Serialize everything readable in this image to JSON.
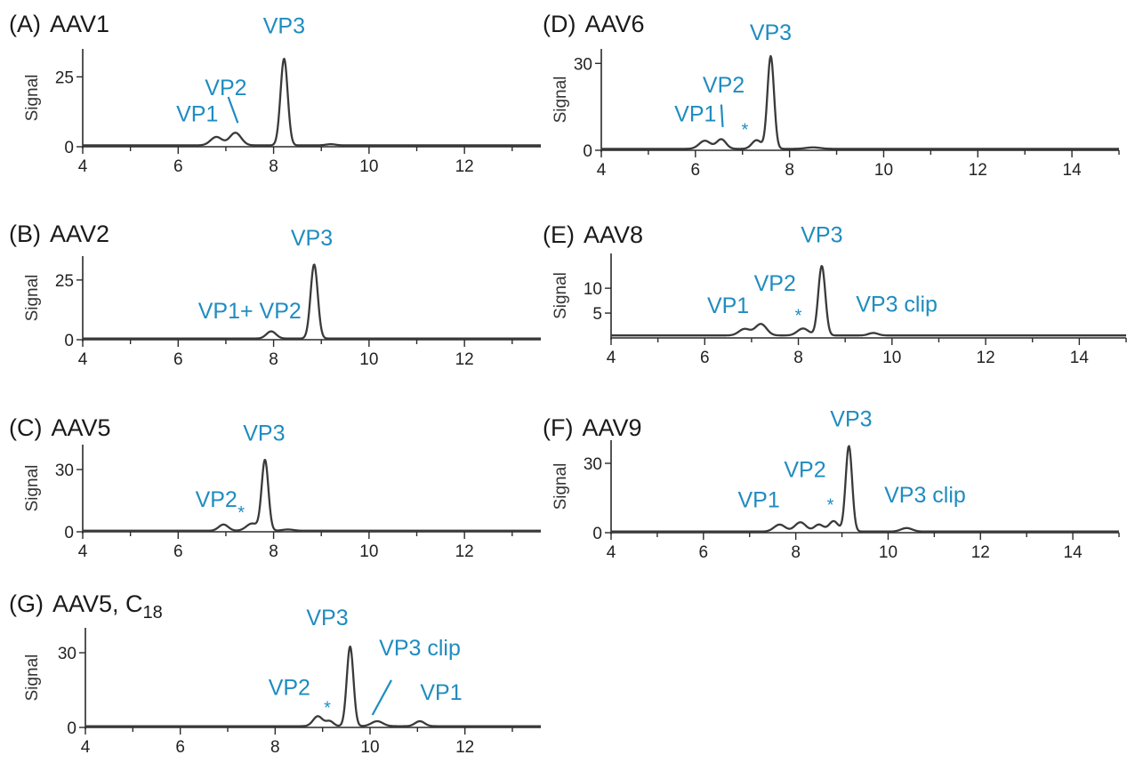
{
  "chart_data": [
    {
      "type": "line",
      "panel": "(A)",
      "title": "AAV1",
      "ylabel": "Signal",
      "xlim": [
        4,
        13.6
      ],
      "ylim": [
        0,
        35
      ],
      "xticks": [
        4,
        6,
        8,
        10,
        12
      ],
      "yticks": [
        0,
        25
      ],
      "baseline": 0.5,
      "peaks": [
        {
          "x": 6.8,
          "height": 3.0,
          "width": 0.12
        },
        {
          "x": 7.2,
          "height": 4.5,
          "width": 0.12
        },
        {
          "x": 8.22,
          "height": 31,
          "width": 0.075
        },
        {
          "x": 9.2,
          "height": 0.4,
          "width": 0.1
        }
      ],
      "annotations": [
        {
          "text": "VP1",
          "x": 6.4,
          "y": 9
        },
        {
          "text": "VP2",
          "x": 7.0,
          "y": 18.5
        },
        {
          "text": "VP3",
          "x": 8.22,
          "y": 40.5
        }
      ],
      "leaders": [
        [
          7.05,
          17.8,
          7.25,
          8.5
        ]
      ]
    },
    {
      "type": "line",
      "panel": "(B)",
      "title": "AAV2",
      "ylabel": "Signal",
      "xlim": [
        4,
        13.6
      ],
      "ylim": [
        0,
        35
      ],
      "xticks": [
        4,
        6,
        8,
        10,
        12
      ],
      "yticks": [
        0,
        25
      ],
      "baseline": 0.5,
      "peaks": [
        {
          "x": 7.95,
          "height": 3.0,
          "width": 0.1
        },
        {
          "x": 8.85,
          "height": 31,
          "width": 0.075
        }
      ],
      "annotations": [
        {
          "text": "VP1+ VP2",
          "x": 7.5,
          "y": 9
        },
        {
          "text": "VP3",
          "x": 8.8,
          "y": 39.5
        }
      ],
      "leaders": []
    },
    {
      "type": "line",
      "panel": "(C)",
      "title": "AAV5",
      "ylabel": "Signal",
      "xlim": [
        4,
        13.6
      ],
      "ylim": [
        0,
        42
      ],
      "xticks": [
        4,
        6,
        8,
        10,
        12
      ],
      "yticks": [
        0,
        30
      ],
      "baseline": 0.5,
      "peaks": [
        {
          "x": 6.95,
          "height": 3.0,
          "width": 0.1
        },
        {
          "x": 7.55,
          "height": 3.5,
          "width": 0.12
        },
        {
          "x": 7.82,
          "height": 34,
          "width": 0.07
        },
        {
          "x": 8.3,
          "height": 0.6,
          "width": 0.12
        }
      ],
      "annotations": [
        {
          "text": "VP2",
          "x": 6.8,
          "y": 12
        },
        {
          "text": "*",
          "x": 7.32,
          "y": 6.5
        },
        {
          "text": "VP3",
          "x": 7.8,
          "y": 44
        }
      ],
      "leaders": []
    },
    {
      "type": "line",
      "panel": "(D)",
      "title": "AAV6",
      "ylabel": "Signal",
      "xlim": [
        4,
        15
      ],
      "ylim": [
        0,
        35
      ],
      "xticks": [
        4,
        6,
        8,
        10,
        12,
        14
      ],
      "yticks": [
        0,
        30
      ],
      "baseline": 0.5,
      "peaks": [
        {
          "x": 6.2,
          "height": 2.8,
          "width": 0.12
        },
        {
          "x": 6.55,
          "height": 3.3,
          "width": 0.1
        },
        {
          "x": 7.3,
          "height": 3.0,
          "width": 0.1
        },
        {
          "x": 7.6,
          "height": 32,
          "width": 0.07
        },
        {
          "x": 8.5,
          "height": 0.5,
          "width": 0.15
        }
      ],
      "annotations": [
        {
          "text": "VP1",
          "x": 6.0,
          "y": 10
        },
        {
          "text": "VP2",
          "x": 6.6,
          "y": 20
        },
        {
          "text": "*",
          "x": 7.05,
          "y": 5
        },
        {
          "text": "VP3",
          "x": 7.6,
          "y": 38
        }
      ],
      "leaders": [
        [
          6.55,
          15.8,
          6.58,
          8.0
        ]
      ]
    },
    {
      "type": "line",
      "panel": "(E)",
      "title": "AAV8",
      "ylabel": "Signal",
      "xlim": [
        4,
        15
      ],
      "ylim": [
        0,
        17
      ],
      "xticks": [
        4,
        6,
        8,
        10,
        12,
        14
      ],
      "yticks": [
        5,
        10
      ],
      "baseline": 0.5,
      "peaks": [
        {
          "x": 6.85,
          "height": 1.3,
          "width": 0.12
        },
        {
          "x": 7.2,
          "height": 2.3,
          "width": 0.12
        },
        {
          "x": 8.1,
          "height": 1.4,
          "width": 0.12
        },
        {
          "x": 8.5,
          "height": 14,
          "width": 0.075
        },
        {
          "x": 9.6,
          "height": 0.5,
          "width": 0.1
        }
      ],
      "annotations": [
        {
          "text": "VP1",
          "x": 6.5,
          "y": 5
        },
        {
          "text": "VP2",
          "x": 7.5,
          "y": 9.5
        },
        {
          "text": "*",
          "x": 8.0,
          "y": 3.3
        },
        {
          "text": "VP3",
          "x": 8.5,
          "y": 19.2
        },
        {
          "text": "VP3 clip",
          "x": 10.1,
          "y": 5.3
        }
      ],
      "leaders": []
    },
    {
      "type": "line",
      "panel": "(F)",
      "title": "AAV9",
      "ylabel": "Signal",
      "xlim": [
        4,
        15
      ],
      "ylim": [
        0,
        40
      ],
      "xticks": [
        4,
        6,
        8,
        10,
        12,
        14
      ],
      "yticks": [
        0,
        30
      ],
      "baseline": 0.5,
      "peaks": [
        {
          "x": 7.65,
          "height": 3.0,
          "width": 0.12
        },
        {
          "x": 8.1,
          "height": 4.0,
          "width": 0.12
        },
        {
          "x": 8.5,
          "height": 3.0,
          "width": 0.1
        },
        {
          "x": 8.82,
          "height": 4.5,
          "width": 0.1
        },
        {
          "x": 9.15,
          "height": 37,
          "width": 0.07
        },
        {
          "x": 10.4,
          "height": 1.5,
          "width": 0.12
        }
      ],
      "annotations": [
        {
          "text": "VP1",
          "x": 7.2,
          "y": 11
        },
        {
          "text": "VP2",
          "x": 8.2,
          "y": 24
        },
        {
          "text": "*",
          "x": 8.75,
          "y": 9.5
        },
        {
          "text": "VP3",
          "x": 9.2,
          "y": 46
        },
        {
          "text": "VP3 clip",
          "x": 10.8,
          "y": 13
        }
      ],
      "leaders": []
    },
    {
      "type": "line",
      "panel": "(G)",
      "title": "AAV5, C",
      "title_sub": "18",
      "ylabel": "Signal",
      "xlim": [
        4,
        13.6
      ],
      "ylim": [
        0,
        40
      ],
      "xticks": [
        4,
        6,
        8,
        10,
        12
      ],
      "yticks": [
        0,
        30
      ],
      "baseline": 0.5,
      "peaks": [
        {
          "x": 8.9,
          "height": 4.0,
          "width": 0.1
        },
        {
          "x": 9.15,
          "height": 2.0,
          "width": 0.08
        },
        {
          "x": 9.58,
          "height": 32,
          "width": 0.07
        },
        {
          "x": 10.15,
          "height": 2.0,
          "width": 0.12
        },
        {
          "x": 11.05,
          "height": 2.0,
          "width": 0.1
        }
      ],
      "annotations": [
        {
          "text": "VP2",
          "x": 8.3,
          "y": 13
        },
        {
          "text": "*",
          "x": 9.1,
          "y": 5.5
        },
        {
          "text": "VP3",
          "x": 9.1,
          "y": 41
        },
        {
          "text": "VP3 clip",
          "x": 11.05,
          "y": 29
        },
        {
          "text": "VP1",
          "x": 11.5,
          "y": 11
        }
      ],
      "leaders": [
        [
          10.45,
          19,
          10.05,
          5
        ]
      ]
    }
  ]
}
